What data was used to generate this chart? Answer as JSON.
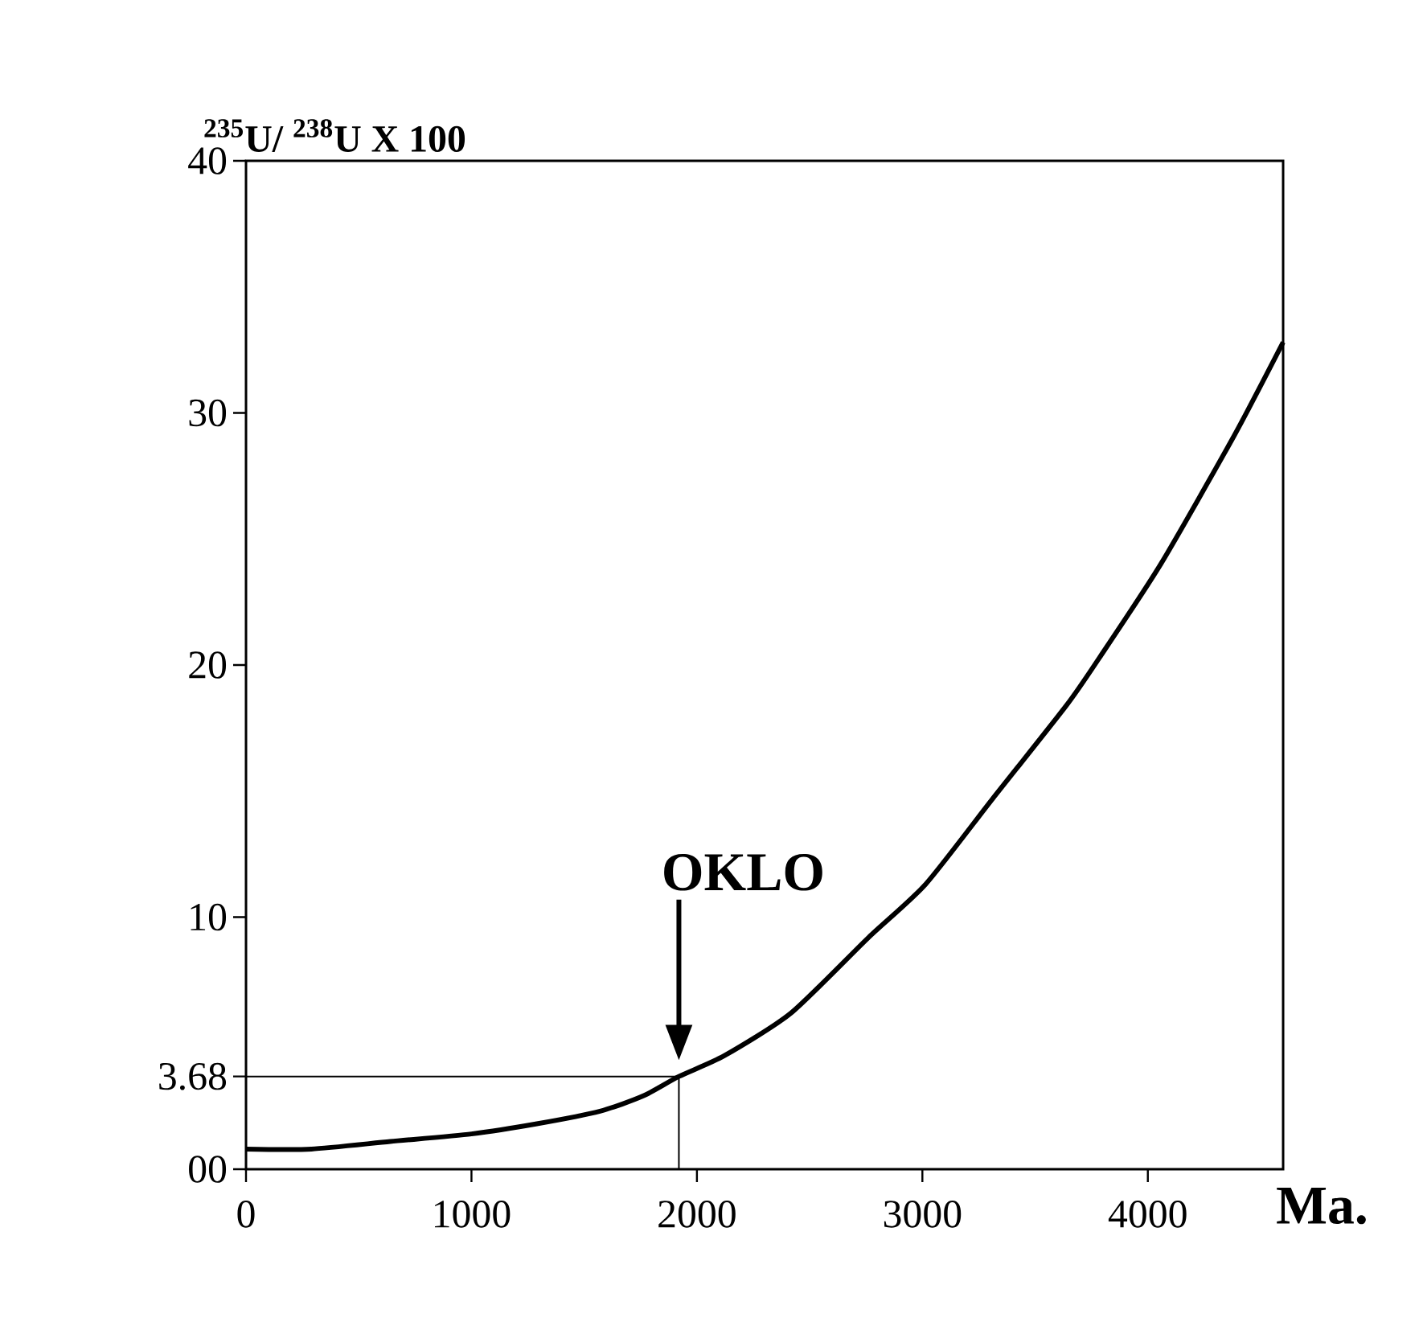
{
  "chart_data": {
    "type": "line",
    "xlabel": "Ma.",
    "ylabel": "$^{235}$U/ $^{238}$U X 100",
    "x": [
      0,
      290,
      640,
      1000,
      1290,
      1570,
      1760,
      1920,
      2121,
      2418,
      2762,
      3014,
      3312,
      3639,
      3786,
      4057,
      4383,
      4600
    ],
    "series": [
      {
        "color": "#000000",
        "values": [
          0.8,
          0.8,
          1.1,
          1.4,
          1.8,
          2.3,
          2.9,
          3.68,
          4.5,
          6.2,
          9.2,
          11.3,
          14.7,
          18.4,
          20.3,
          24.0,
          29.1,
          32.8
        ]
      }
    ],
    "xlim": [
      0,
      4600
    ],
    "ylim": [
      0,
      40
    ],
    "xticks": [
      0,
      1000,
      2000,
      3000,
      4000
    ],
    "yticks": [
      {
        "value": 0,
        "label": "00"
      },
      {
        "value": 3.68,
        "label": "3.68"
      },
      10,
      20,
      30,
      40
    ],
    "ref_lines": [
      {
        "axis": "y",
        "value": 3.68
      },
      {
        "axis": "x",
        "value": 1920
      }
    ],
    "annotations": [
      "OKLO"
    ],
    "grid": false,
    "marker": "none",
    "line_style": "solid"
  }
}
